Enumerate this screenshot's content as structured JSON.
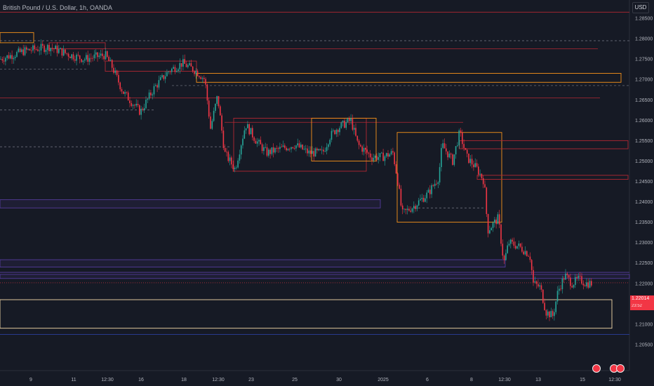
{
  "header": {
    "title": "British Pound / U.S. Dollar, 1h, OANDA",
    "currency": "USD"
  },
  "last_price": {
    "value": "1.22014",
    "countdown": "23:52"
  },
  "colors": {
    "background": "#161a25",
    "up": "#26a69a",
    "down": "#f23645",
    "zone_orange": "#f7931a",
    "zone_red": "#b22833",
    "zone_purple": "#5b3fa8",
    "zone_blue": "#2a3f9e",
    "zone_cream": "#f5d9a8"
  },
  "chart_data": {
    "type": "candlestick",
    "title": "British Pound / U.S. Dollar, 1h, OANDA",
    "xlabel": "",
    "ylabel": "",
    "ylim": [
      1.2,
      1.2875
    ],
    "y_ticks": [
      "1.28500",
      "1.28000",
      "1.27500",
      "1.27000",
      "1.26500",
      "1.26000",
      "1.25500",
      "1.25000",
      "1.24500",
      "1.24000",
      "1.23500",
      "1.23000",
      "1.22500",
      "1.22000",
      "1.21500",
      "1.21000",
      "1.20500"
    ],
    "x_ticks": [
      "9",
      "11",
      "12:30",
      "16",
      "18",
      "12:30",
      "23",
      "25",
      "30",
      "2025",
      "6",
      "8",
      "12:30",
      "13",
      "15",
      "12:30"
    ],
    "path": [
      [
        0,
        1.275
      ],
      [
        35,
        1.277
      ],
      [
        70,
        1.278
      ],
      [
        100,
        1.276
      ],
      [
        120,
        1.275
      ],
      [
        150,
        1.276
      ],
      [
        160,
        1.273
      ],
      [
        175,
        1.267
      ],
      [
        200,
        1.262
      ],
      [
        220,
        1.268
      ],
      [
        240,
        1.272
      ],
      [
        260,
        1.274
      ],
      [
        280,
        1.272
      ],
      [
        292,
        1.27
      ],
      [
        300,
        1.258
      ],
      [
        310,
        1.266
      ],
      [
        320,
        1.252
      ],
      [
        335,
        1.248
      ],
      [
        350,
        1.259
      ],
      [
        365,
        1.255
      ],
      [
        380,
        1.252
      ],
      [
        400,
        1.253
      ],
      [
        420,
        1.254
      ],
      [
        440,
        1.252
      ],
      [
        460,
        1.252
      ],
      [
        470,
        1.256
      ],
      [
        480,
        1.258
      ],
      [
        500,
        1.26
      ],
      [
        510,
        1.254
      ],
      [
        530,
        1.251
      ],
      [
        545,
        1.251
      ],
      [
        560,
        1.252
      ],
      [
        567,
        1.245
      ],
      [
        573,
        1.237
      ],
      [
        590,
        1.239
      ],
      [
        610,
        1.242
      ],
      [
        625,
        1.246
      ],
      [
        630,
        1.254
      ],
      [
        645,
        1.25
      ],
      [
        655,
        1.257
      ],
      [
        665,
        1.251
      ],
      [
        680,
        1.248
      ],
      [
        690,
        1.245
      ],
      [
        695,
        1.233
      ],
      [
        710,
        1.236
      ],
      [
        718,
        1.225
      ],
      [
        725,
        1.23
      ],
      [
        740,
        1.229
      ],
      [
        755,
        1.227
      ],
      [
        760,
        1.22
      ],
      [
        770,
        1.219
      ],
      [
        778,
        1.213
      ],
      [
        788,
        1.212
      ],
      [
        795,
        1.218
      ],
      [
        805,
        1.222
      ],
      [
        815,
        1.22
      ],
      [
        825,
        1.221
      ],
      [
        835,
        1.22
      ],
      [
        845,
        1.22
      ]
    ],
    "support_resistance": {
      "red_lines": [
        1.2865,
        1.2795,
        1.2775,
        1.2655,
        1.2505,
        1.2385
      ],
      "dashed_lines": [
        1.2795,
        1.2725,
        1.2685,
        1.2625,
        1.2535,
        1.2385,
        1.223
      ],
      "purple_zones": [
        [
          1.2385,
          1.2405
        ],
        [
          1.222,
          1.2235
        ],
        [
          1.2245,
          1.226
        ]
      ]
    }
  }
}
